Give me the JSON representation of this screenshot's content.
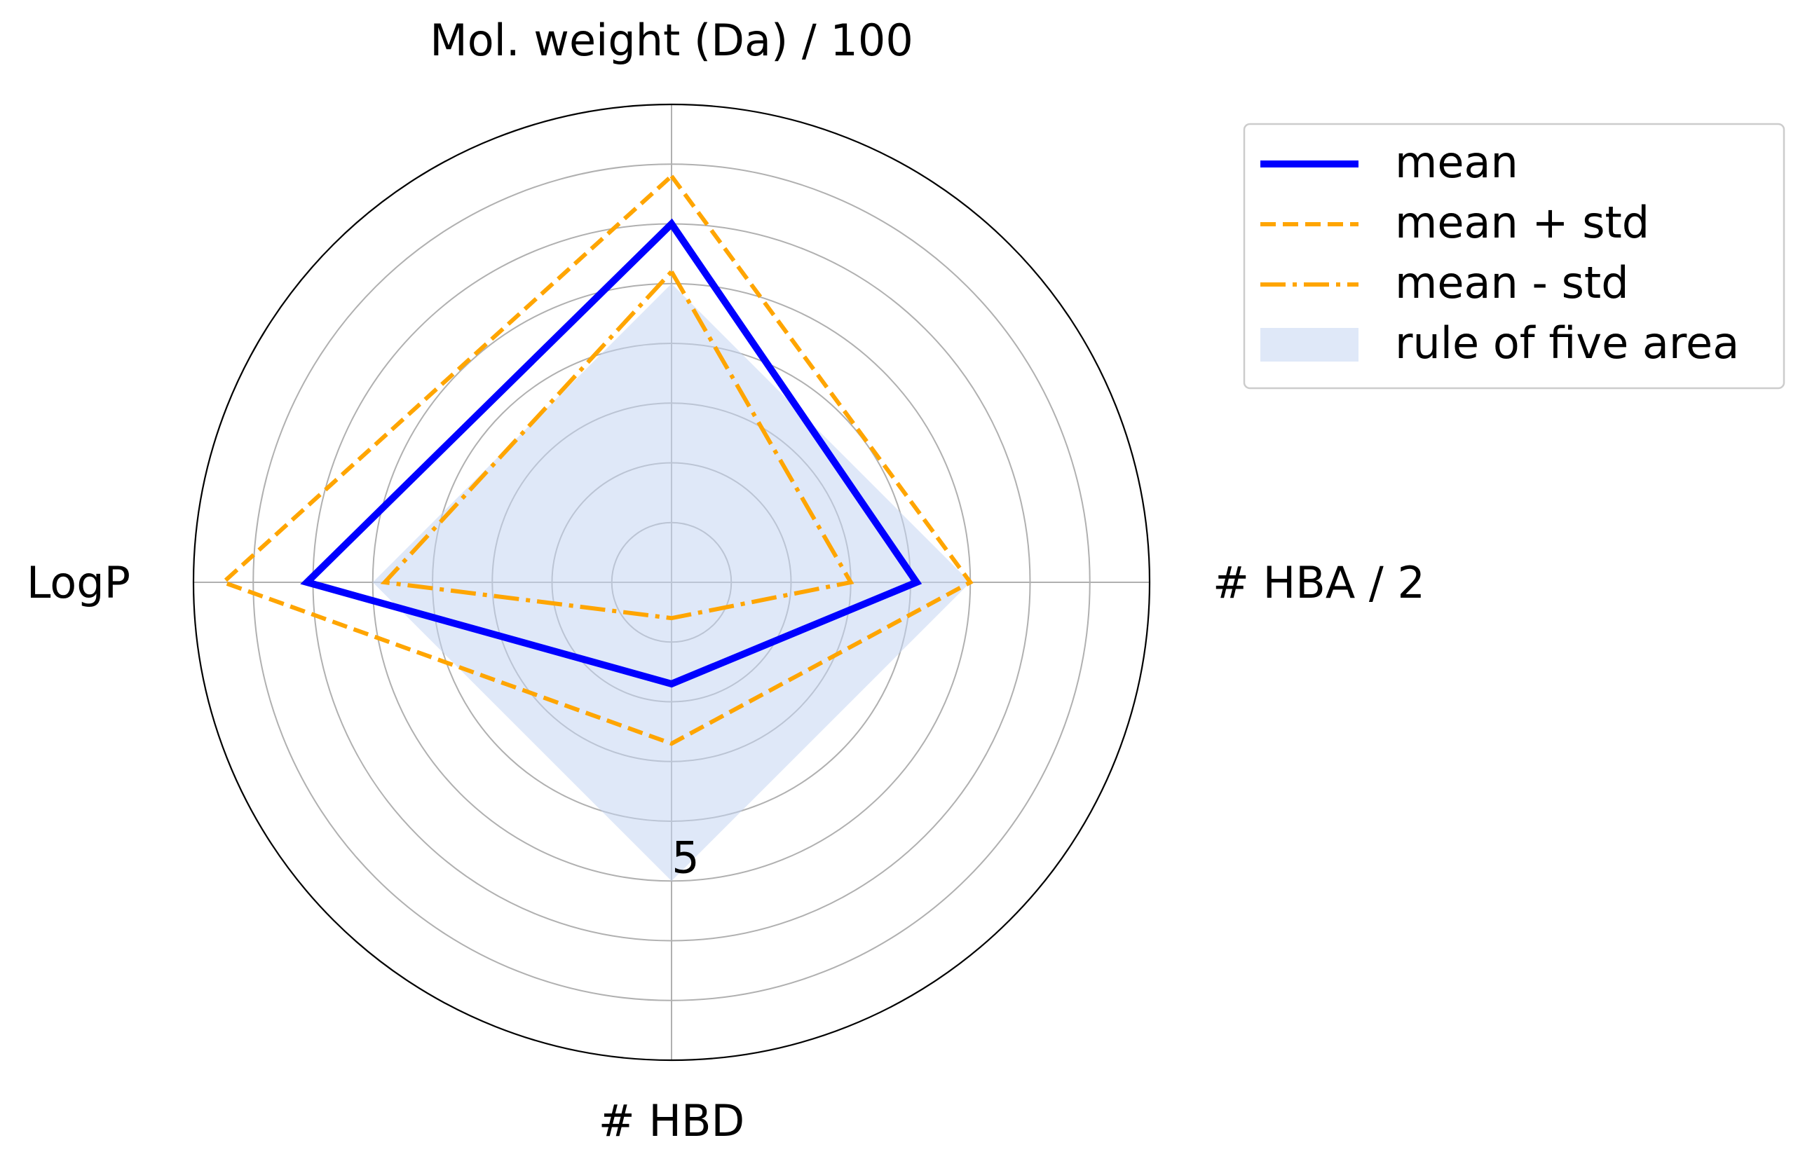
{
  "chart_data": {
    "type": "radar",
    "axes": [
      "Mol. weight (Da) / 100",
      "# HBA / 2",
      "# HBD",
      "LogP"
    ],
    "rmax": 8,
    "radial_ticks": [
      1,
      2,
      3,
      4,
      5,
      6,
      7
    ],
    "radial_tick_labels_shown": [
      "5"
    ],
    "series": [
      {
        "name": "mean",
        "values": [
          6.0,
          4.1,
          1.7,
          6.1
        ],
        "color": "#0000ff",
        "style": "solid"
      },
      {
        "name": "mean + std",
        "values": [
          6.8,
          5.0,
          2.7,
          7.5
        ],
        "color": "#ffa500",
        "style": "dashed"
      },
      {
        "name": "mean - std",
        "values": [
          5.2,
          3.0,
          0.6,
          4.8
        ],
        "color": "#ffa500",
        "style": "dashdot"
      }
    ],
    "area": {
      "name": "rule of five area",
      "values": [
        5,
        5,
        5,
        5
      ],
      "color": "#c5d5f3"
    },
    "grid": true,
    "legend": "upper-right-outside"
  }
}
